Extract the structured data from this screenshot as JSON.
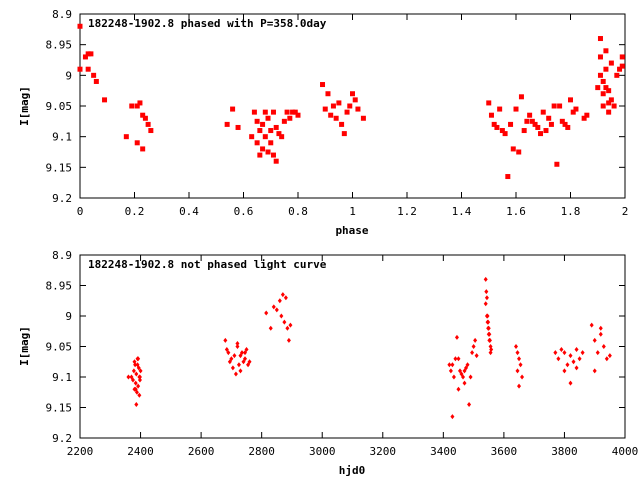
{
  "colors": {
    "data": "#ff0000",
    "axis": "#000000",
    "background": "#ffffff"
  },
  "chart_data": [
    {
      "type": "scatter",
      "title": "182248-1902.8 phased with P=358.0day",
      "xlabel": "phase",
      "ylabel": "I[mag]",
      "xlim": [
        0,
        2
      ],
      "ylim": [
        9.2,
        8.9
      ],
      "y_inverted": true,
      "grid": false,
      "xticks": [
        0,
        0.2,
        0.4,
        0.6,
        0.8,
        1,
        1.2,
        1.4,
        1.6,
        1.8,
        2
      ],
      "yticks": [
        8.9,
        8.95,
        9,
        9.05,
        9.1,
        9.15,
        9.2
      ],
      "xtick_labels": [
        "0",
        "0.2",
        "0.4",
        "0.6",
        "0.8",
        "1",
        "1.2",
        "1.4",
        "1.6",
        "1.8",
        "2"
      ],
      "ytick_labels": [
        "8.9",
        "8.95",
        "9",
        "9.05",
        "9.1",
        "9.15",
        "9.2"
      ],
      "marker": "filled-square",
      "x": [
        0.0,
        0.0,
        0.02,
        0.03,
        0.04,
        0.05,
        0.03,
        0.06,
        0.09,
        0.17,
        0.19,
        0.21,
        0.22,
        0.23,
        0.24,
        0.25,
        0.26,
        0.21,
        0.23,
        0.54,
        0.56,
        0.58,
        0.63,
        0.64,
        0.65,
        0.65,
        0.66,
        0.66,
        0.67,
        0.67,
        0.68,
        0.68,
        0.69,
        0.69,
        0.7,
        0.7,
        0.71,
        0.71,
        0.72,
        0.72,
        0.73,
        0.74,
        0.75,
        0.76,
        0.77,
        0.78,
        0.79,
        0.8,
        0.89,
        0.9,
        0.91,
        0.92,
        0.93,
        0.94,
        0.95,
        0.96,
        0.97,
        0.98,
        0.99,
        1.0,
        1.01,
        1.02,
        1.04,
        1.5,
        1.51,
        1.52,
        1.53,
        1.54,
        1.55,
        1.56,
        1.57,
        1.58,
        1.59,
        1.6,
        1.61,
        1.62,
        1.63,
        1.64,
        1.65,
        1.66,
        1.67,
        1.68,
        1.69,
        1.7,
        1.71,
        1.72,
        1.73,
        1.74,
        1.75,
        1.76,
        1.77,
        1.78,
        1.79,
        1.8,
        1.81,
        1.82,
        1.85,
        1.86,
        1.9,
        1.91,
        1.91,
        1.91,
        1.92,
        1.92,
        1.92,
        1.93,
        1.93,
        1.93,
        1.94,
        1.94,
        1.94,
        1.95,
        1.95,
        1.96,
        1.97,
        1.98,
        1.99,
        1.99
      ],
      "y": [
        8.92,
        8.99,
        8.97,
        8.965,
        8.965,
        9.0,
        8.99,
        9.01,
        9.04,
        9.1,
        9.05,
        9.05,
        9.045,
        9.065,
        9.07,
        9.08,
        9.09,
        9.11,
        9.12,
        9.08,
        9.055,
        9.085,
        9.1,
        9.06,
        9.075,
        9.11,
        9.09,
        9.13,
        9.08,
        9.12,
        9.06,
        9.1,
        9.07,
        9.125,
        9.09,
        9.11,
        9.06,
        9.13,
        9.085,
        9.14,
        9.095,
        9.1,
        9.075,
        9.06,
        9.07,
        9.06,
        9.06,
        9.065,
        9.015,
        9.055,
        9.03,
        9.065,
        9.05,
        9.07,
        9.045,
        9.08,
        9.095,
        9.06,
        9.05,
        9.03,
        9.04,
        9.055,
        9.07,
        9.045,
        9.065,
        9.08,
        9.085,
        9.055,
        9.09,
        9.095,
        9.165,
        9.08,
        9.12,
        9.055,
        9.125,
        9.035,
        9.09,
        9.075,
        9.065,
        9.075,
        9.08,
        9.085,
        9.095,
        9.06,
        9.09,
        9.07,
        9.08,
        9.05,
        9.145,
        9.05,
        9.075,
        9.08,
        9.085,
        9.04,
        9.06,
        9.055,
        9.07,
        9.065,
        9.02,
        8.94,
        8.97,
        9.0,
        9.01,
        9.03,
        9.05,
        8.96,
        8.99,
        9.02,
        9.025,
        9.045,
        9.06,
        8.98,
        9.04,
        9.05,
        9.0,
        8.99,
        8.985,
        8.97
      ],
      "points_count_note": ""
    },
    {
      "type": "scatter",
      "title": "182248-1902.8 not phased light curve",
      "xlabel": "hjd0",
      "ylabel": "I[mag]",
      "xlim": [
        2200,
        4000
      ],
      "ylim": [
        9.2,
        8.9
      ],
      "y_inverted": true,
      "grid": false,
      "xticks": [
        2200,
        2400,
        2600,
        2800,
        3000,
        3200,
        3400,
        3600,
        3800,
        4000
      ],
      "yticks": [
        8.9,
        8.95,
        9,
        9.05,
        9.1,
        9.15,
        9.2
      ],
      "xtick_labels": [
        "2200",
        "2400",
        "2600",
        "2800",
        "3000",
        "3200",
        "3400",
        "3600",
        "3800",
        "4000"
      ],
      "ytick_labels": [
        "8.9",
        "8.95",
        "9",
        "9.05",
        "9.1",
        "9.15",
        "9.2"
      ],
      "marker": "small-diamond",
      "x": [
        2360,
        2370,
        2375,
        2378,
        2380,
        2382,
        2384,
        2386,
        2388,
        2390,
        2392,
        2394,
        2396,
        2398,
        2400,
        2380,
        2386,
        2392,
        2398,
        2384,
        2390,
        2396,
        2680,
        2685,
        2690,
        2695,
        2700,
        2705,
        2710,
        2715,
        2720,
        2725,
        2730,
        2735,
        2740,
        2745,
        2750,
        2755,
        2760,
        2730,
        2745,
        2720,
        2815,
        2830,
        2840,
        2850,
        2860,
        2865,
        2870,
        2875,
        2880,
        2885,
        2890,
        2895,
        3420,
        3425,
        3430,
        3435,
        3440,
        3445,
        3450,
        3455,
        3460,
        3465,
        3470,
        3475,
        3480,
        3485,
        3490,
        3495,
        3500,
        3505,
        3510,
        3450,
        3470,
        3430,
        3540,
        3542,
        3544,
        3546,
        3548,
        3550,
        3552,
        3554,
        3556,
        3558,
        3540,
        3544,
        3548,
        3552,
        3556,
        3546,
        3550,
        3640,
        3645,
        3650,
        3655,
        3660,
        3645,
        3650,
        3770,
        3780,
        3790,
        3800,
        3810,
        3820,
        3830,
        3840,
        3850,
        3860,
        3800,
        3820,
        3840,
        3890,
        3900,
        3910,
        3920,
        3930,
        3940,
        3950,
        3900,
        3920
      ],
      "y": [
        9.1,
        9.1,
        9.105,
        9.09,
        9.12,
        9.08,
        9.11,
        9.095,
        9.125,
        9.07,
        9.115,
        9.085,
        9.13,
        9.1,
        9.09,
        9.075,
        9.145,
        9.07,
        9.105,
        9.12,
        9.08,
        9.1,
        9.04,
        9.055,
        9.06,
        9.075,
        9.07,
        9.085,
        9.065,
        9.095,
        9.05,
        9.08,
        9.09,
        9.06,
        9.075,
        9.07,
        9.055,
        9.08,
        9.075,
        9.065,
        9.06,
        9.045,
        8.995,
        9.02,
        8.985,
        8.99,
        8.975,
        9.0,
        8.965,
        9.01,
        8.97,
        9.02,
        9.04,
        9.015,
        9.08,
        9.09,
        9.165,
        9.1,
        9.07,
        9.035,
        9.12,
        9.09,
        9.095,
        9.1,
        9.11,
        9.085,
        9.08,
        9.145,
        9.1,
        9.06,
        9.05,
        9.04,
        9.065,
        9.07,
        9.09,
        9.08,
        8.94,
        8.96,
        8.97,
        9.0,
        9.01,
        9.02,
        9.03,
        9.04,
        9.05,
        9.055,
        8.98,
        9.0,
        9.02,
        9.04,
        9.06,
        9.01,
        9.03,
        9.05,
        9.06,
        9.07,
        9.08,
        9.1,
        9.09,
        9.115,
        9.06,
        9.07,
        9.055,
        9.06,
        9.08,
        9.065,
        9.075,
        9.085,
        9.07,
        9.06,
        9.09,
        9.11,
        9.055,
        9.015,
        9.04,
        9.06,
        9.03,
        9.05,
        9.07,
        9.065,
        9.09,
        9.02
      ]
    }
  ]
}
